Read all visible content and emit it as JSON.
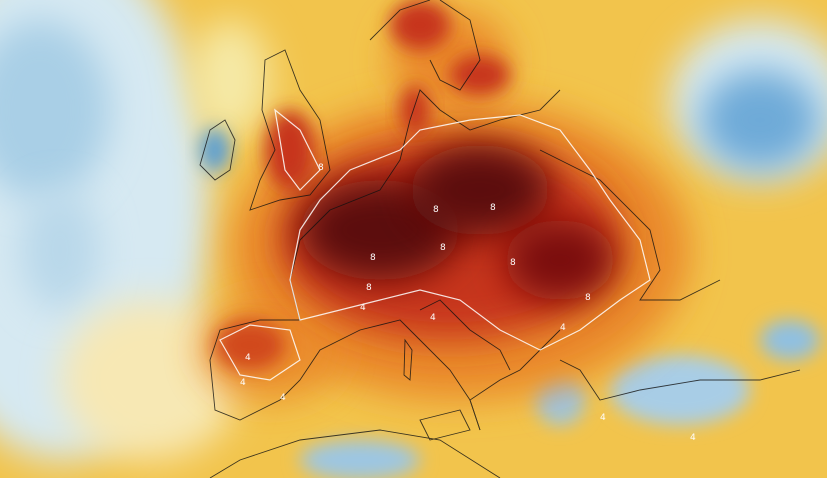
{
  "map": {
    "type": "temperature anomaly field over Europe",
    "colors": {
      "background": "#f2c44c",
      "cold_light": "#d6e9f2",
      "cold": "#5b9fd2",
      "warm": "#ea8a2a",
      "hot": "#c7361c",
      "extreme": "#5c0b0b",
      "contour": "#ffffff",
      "coastline": "#111111"
    },
    "contour_labels": [
      "8",
      "8",
      "8",
      "8",
      "8",
      "8",
      "8",
      "8",
      "4",
      "4",
      "4",
      "4",
      "4",
      "4",
      "4",
      "4"
    ]
  }
}
